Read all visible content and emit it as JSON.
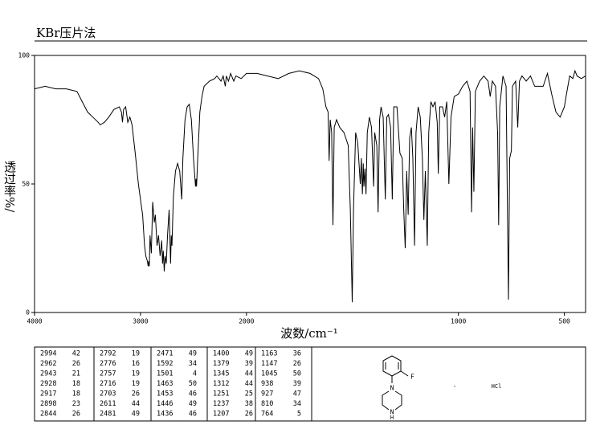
{
  "chart_data": {
    "type": "line",
    "title": "KBr压片法",
    "x_label": "波数/cm⁻¹",
    "y_label": "透过率%/",
    "xlim": [
      4000,
      400
    ],
    "ylim": [
      0,
      100
    ],
    "xticks": [
      4000,
      3000,
      2000,
      1000,
      500
    ],
    "yticks": [
      0,
      50,
      100
    ],
    "x_scale_break": 2000,
    "x_scale_factor": 2,
    "color": "#000000",
    "x": [
      4000,
      3900,
      3800,
      3700,
      3600,
      3550,
      3500,
      3450,
      3400,
      3380,
      3340,
      3300,
      3250,
      3200,
      3180,
      3170,
      3160,
      3140,
      3120,
      3100,
      3080,
      3050,
      3020,
      2994,
      2980,
      2962,
      2950,
      2943,
      2935,
      2928,
      2922,
      2917,
      2910,
      2898,
      2885,
      2870,
      2860,
      2844,
      2830,
      2815,
      2800,
      2792,
      2785,
      2776,
      2768,
      2757,
      2745,
      2730,
      2716,
      2710,
      2703,
      2690,
      2670,
      2650,
      2630,
      2611,
      2600,
      2580,
      2560,
      2540,
      2520,
      2500,
      2481,
      2476,
      2471,
      2460,
      2440,
      2420,
      2400,
      2350,
      2300,
      2280,
      2260,
      2240,
      2220,
      2200,
      2190,
      2170,
      2150,
      2120,
      2100,
      2050,
      2000,
      1950,
      1900,
      1850,
      1800,
      1750,
      1700,
      1660,
      1640,
      1625,
      1615,
      1610,
      1605,
      1598,
      1592,
      1586,
      1575,
      1560,
      1540,
      1520,
      1510,
      1501,
      1495,
      1485,
      1475,
      1463,
      1458,
      1453,
      1449,
      1446,
      1441,
      1436,
      1430,
      1420,
      1410,
      1400,
      1395,
      1385,
      1379,
      1372,
      1365,
      1355,
      1345,
      1338,
      1330,
      1320,
      1312,
      1305,
      1290,
      1276,
      1265,
      1258,
      1251,
      1244,
      1237,
      1230,
      1222,
      1215,
      1207,
      1200,
      1190,
      1180,
      1170,
      1163,
      1156,
      1147,
      1140,
      1130,
      1120,
      1110,
      1100,
      1095,
      1088,
      1075,
      1065,
      1055,
      1045,
      1035,
      1020,
      1000,
      980,
      960,
      945,
      938,
      933,
      927,
      920,
      900,
      880,
      860,
      850,
      840,
      825,
      815,
      810,
      805,
      790,
      775,
      764,
      758,
      750,
      745,
      730,
      720,
      712,
      700,
      680,
      660,
      640,
      620,
      600,
      580,
      560,
      540,
      520,
      500,
      490,
      475,
      460,
      450,
      440,
      420,
      400
    ],
    "values": [
      87,
      88,
      87,
      87,
      86,
      82,
      78,
      76,
      74,
      73,
      74,
      76,
      79,
      80,
      78,
      74,
      79,
      80,
      74,
      76,
      73,
      62,
      50,
      42,
      38,
      26,
      22,
      21,
      20,
      18,
      20,
      18,
      30,
      23,
      43,
      35,
      38,
      26,
      30,
      22,
      28,
      19,
      24,
      16,
      22,
      19,
      30,
      40,
      19,
      30,
      26,
      45,
      55,
      58,
      55,
      44,
      60,
      75,
      80,
      81,
      75,
      60,
      49,
      52,
      49,
      60,
      78,
      84,
      88,
      90,
      91,
      92,
      91,
      90,
      92,
      88,
      92,
      90,
      93,
      90,
      92,
      91,
      93,
      93,
      92,
      91,
      93,
      94,
      93,
      91,
      87,
      80,
      78,
      59,
      75,
      70,
      34,
      72,
      75,
      72,
      70,
      65,
      40,
      4,
      40,
      70,
      66,
      50,
      60,
      46,
      58,
      49,
      56,
      46,
      70,
      76,
      72,
      49,
      70,
      65,
      39,
      75,
      80,
      76,
      44,
      76,
      77,
      72,
      44,
      80,
      80,
      62,
      60,
      40,
      25,
      55,
      38,
      68,
      72,
      60,
      26,
      70,
      80,
      76,
      60,
      36,
      55,
      26,
      70,
      82,
      80,
      82,
      74,
      54,
      80,
      80,
      76,
      82,
      50,
      76,
      84,
      85,
      88,
      90,
      86,
      39,
      72,
      47,
      86,
      90,
      92,
      90,
      84,
      90,
      88,
      70,
      34,
      80,
      92,
      88,
      5,
      60,
      63,
      88,
      90,
      72,
      90,
      92,
      90,
      92,
      88,
      88,
      88,
      93,
      85,
      78,
      76,
      80,
      85,
      92,
      91,
      94,
      92,
      91,
      92
    ],
    "peak_table": [
      [
        2994,
        42
      ],
      [
        2962,
        26
      ],
      [
        2943,
        21
      ],
      [
        2928,
        18
      ],
      [
        2917,
        18
      ],
      [
        2898,
        23
      ],
      [
        2844,
        26
      ],
      [
        2792,
        19
      ],
      [
        2776,
        16
      ],
      [
        2757,
        19
      ],
      [
        2716,
        19
      ],
      [
        2703,
        26
      ],
      [
        2611,
        44
      ],
      [
        2481,
        49
      ],
      [
        2471,
        49
      ],
      [
        1592,
        34
      ],
      [
        1501,
        4
      ],
      [
        1463,
        50
      ],
      [
        1453,
        46
      ],
      [
        1446,
        49
      ],
      [
        1436,
        46
      ],
      [
        1400,
        49
      ],
      [
        1379,
        39
      ],
      [
        1345,
        44
      ],
      [
        1312,
        44
      ],
      [
        1251,
        25
      ],
      [
        1237,
        38
      ],
      [
        1207,
        26
      ],
      [
        1163,
        36
      ],
      [
        1147,
        26
      ],
      [
        1045,
        50
      ],
      [
        938,
        39
      ],
      [
        927,
        47
      ],
      [
        810,
        34
      ],
      [
        764,
        5
      ]
    ]
  },
  "structure": {
    "atoms": [
      "F",
      "N",
      "N",
      "H"
    ],
    "dot": "·",
    "salt": "HCl"
  }
}
